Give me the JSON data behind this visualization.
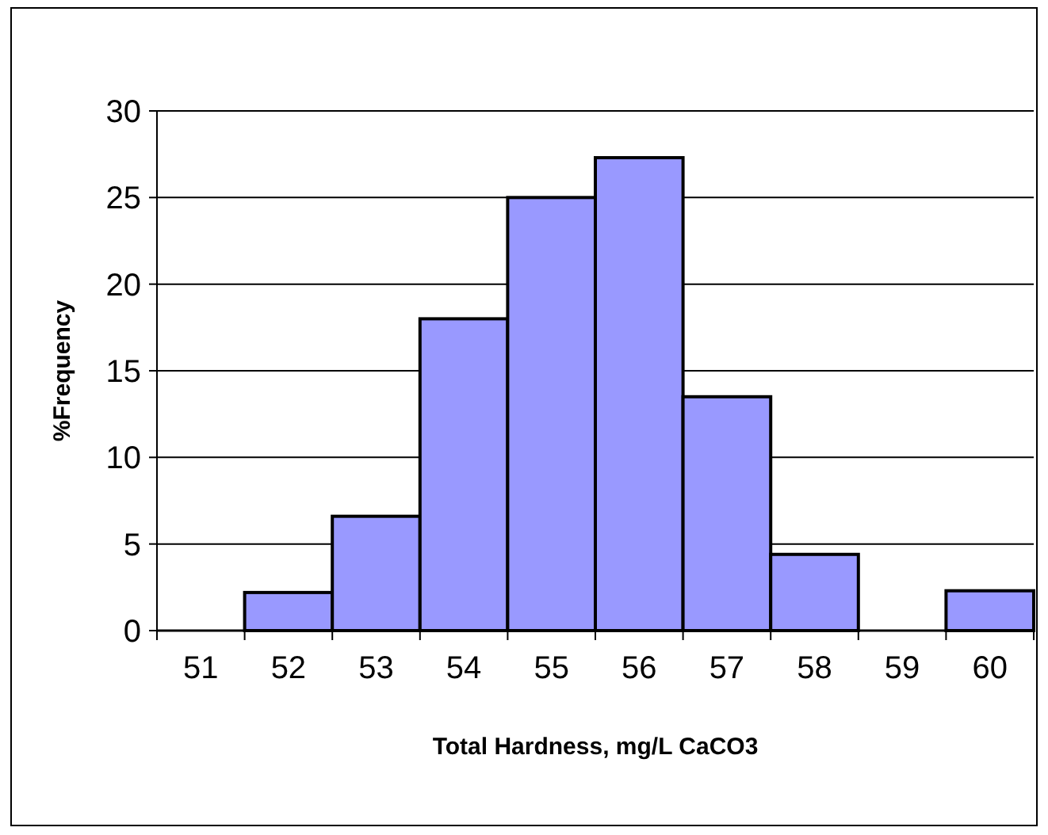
{
  "chart_data": {
    "type": "bar",
    "xlabel": "Total Hardness, mg/L CaCO3",
    "ylabel": "%Frequency",
    "categories": [
      "51",
      "52",
      "53",
      "54",
      "55",
      "56",
      "57",
      "58",
      "59",
      "60"
    ],
    "values": [
      0,
      2.2,
      6.6,
      18,
      25,
      27.3,
      13.5,
      4.4,
      0,
      2.3
    ],
    "color": "#9999ff",
    "ylim": [
      0,
      30
    ],
    "yticks": [
      0,
      5,
      10,
      15,
      20,
      25,
      30
    ],
    "grid": "y"
  }
}
